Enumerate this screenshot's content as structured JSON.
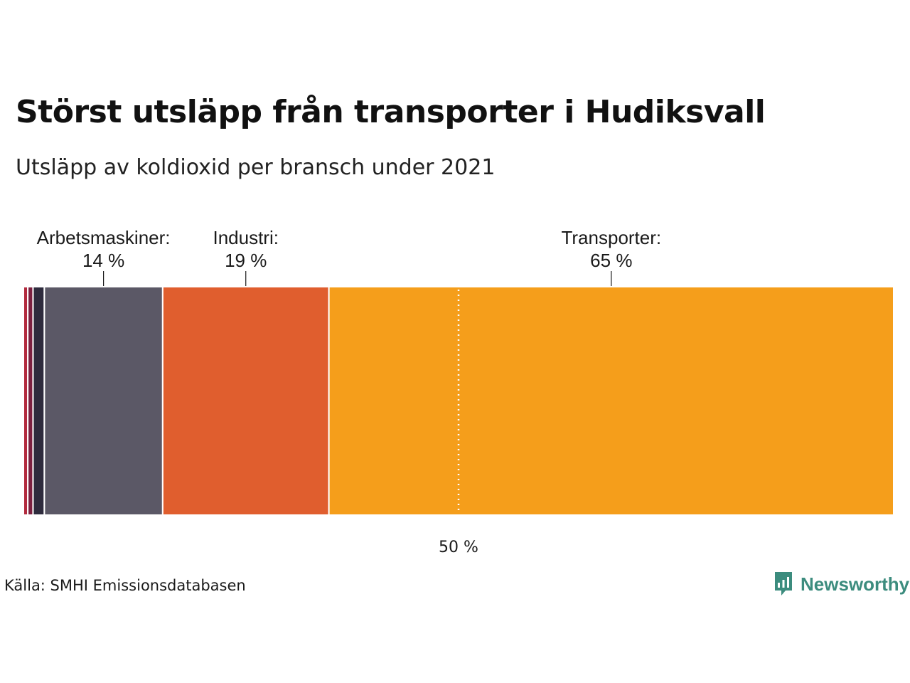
{
  "header": {
    "title": "Störst utsläpp från transporter i Hudiksvall",
    "subtitle": "Utsläpp av koldioxid per bransch under 2021"
  },
  "footer": {
    "source": "Källa: SMHI Emissionsdatabasen",
    "brand": "Newsworthy"
  },
  "colors": {
    "brand": "#3c8c7e",
    "reference_line": "#ffffff"
  },
  "chart_data": {
    "type": "stacked-bar-100",
    "title": "Störst utsläpp från transporter i Hudiksvall",
    "subtitle": "Utsläpp av koldioxid per bransch under 2021",
    "unit": "%",
    "segments": [
      {
        "value": 0.5,
        "color": "#b22a3e"
      },
      {
        "value": 0.6,
        "color": "#7a2040"
      },
      {
        "value": 1.3,
        "color": "#2e2b3d"
      },
      {
        "value": 13.6,
        "color": "#5b5866",
        "label": "Arbetsmaskiner:",
        "value_label": "14 %"
      },
      {
        "value": 19.1,
        "color": "#e05e2e",
        "label": "Industri:",
        "value_label": "19 %"
      },
      {
        "value": 64.9,
        "color": "#f59e1b",
        "label": "Transporter:",
        "value_label": "65 %"
      }
    ],
    "reference_line": {
      "value": 50,
      "label": "50 %"
    },
    "xlim": [
      0,
      100
    ]
  }
}
